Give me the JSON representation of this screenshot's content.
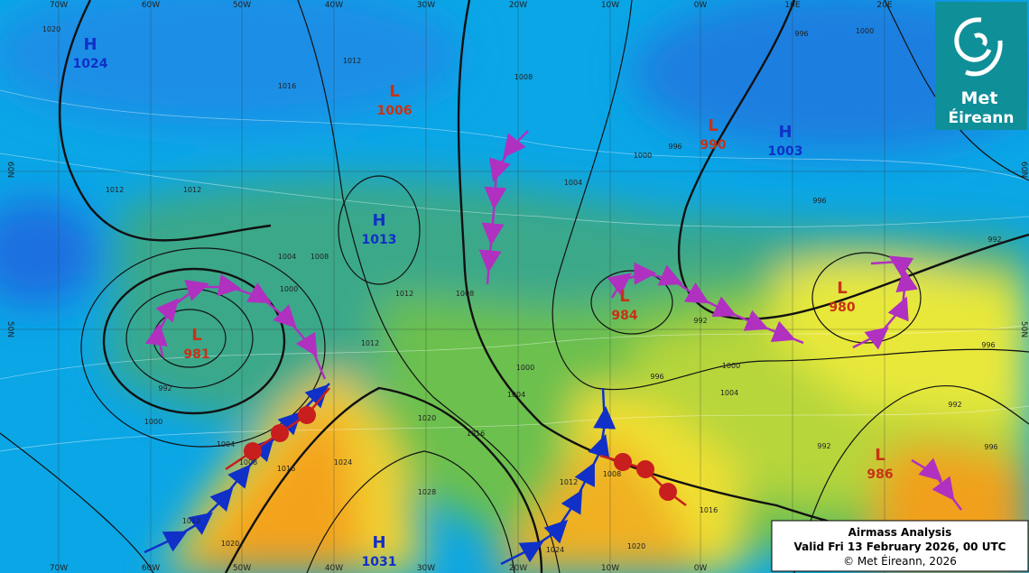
{
  "logo": {
    "line1": "Met",
    "line2": "Éireann"
  },
  "info": {
    "title": "Airmass Analysis",
    "valid": "Valid Fri 13 February 2026, 00 UTC",
    "copyright": "© Met Éireann, 2026"
  },
  "longitudes_top": [
    "70W",
    "60W",
    "50W",
    "40W",
    "30W",
    "20W",
    "10W",
    "0W",
    "10E",
    "20E"
  ],
  "longitudes_bottom": [
    "70W",
    "60W",
    "50W",
    "40W",
    "30W",
    "20W",
    "10W",
    "0W"
  ],
  "latitudes_left": [
    "60N",
    "50N"
  ],
  "latitudes_right": [
    "60N",
    "50N"
  ],
  "pressure_centers": [
    {
      "kind": "H",
      "value": "1024"
    },
    {
      "kind": "L",
      "value": "1006"
    },
    {
      "kind": "L",
      "value": "990"
    },
    {
      "kind": "H",
      "value": "1003"
    },
    {
      "kind": "H",
      "value": "1013"
    },
    {
      "kind": "L",
      "value": "984"
    },
    {
      "kind": "L",
      "value": "980"
    },
    {
      "kind": "L",
      "value": "981"
    },
    {
      "kind": "L",
      "value": "986"
    },
    {
      "kind": "H",
      "value": "1031"
    }
  ],
  "isobar_labels": [
    "1020",
    "1016",
    "1012",
    "1008",
    "1004",
    "1000",
    "996",
    "996",
    "1000",
    "1012",
    "1012",
    "1008",
    "1004",
    "1000",
    "992",
    "1000",
    "1004",
    "1008",
    "1012",
    "1016",
    "1020",
    "1024",
    "1028",
    "1020",
    "1016",
    "1012",
    "1008",
    "1004",
    "1000",
    "996",
    "1000",
    "1004",
    "992",
    "996",
    "992",
    "996",
    "992",
    "992",
    "996",
    "1016",
    "1020",
    "1024",
    "1012",
    "1008",
    "1012"
  ]
}
